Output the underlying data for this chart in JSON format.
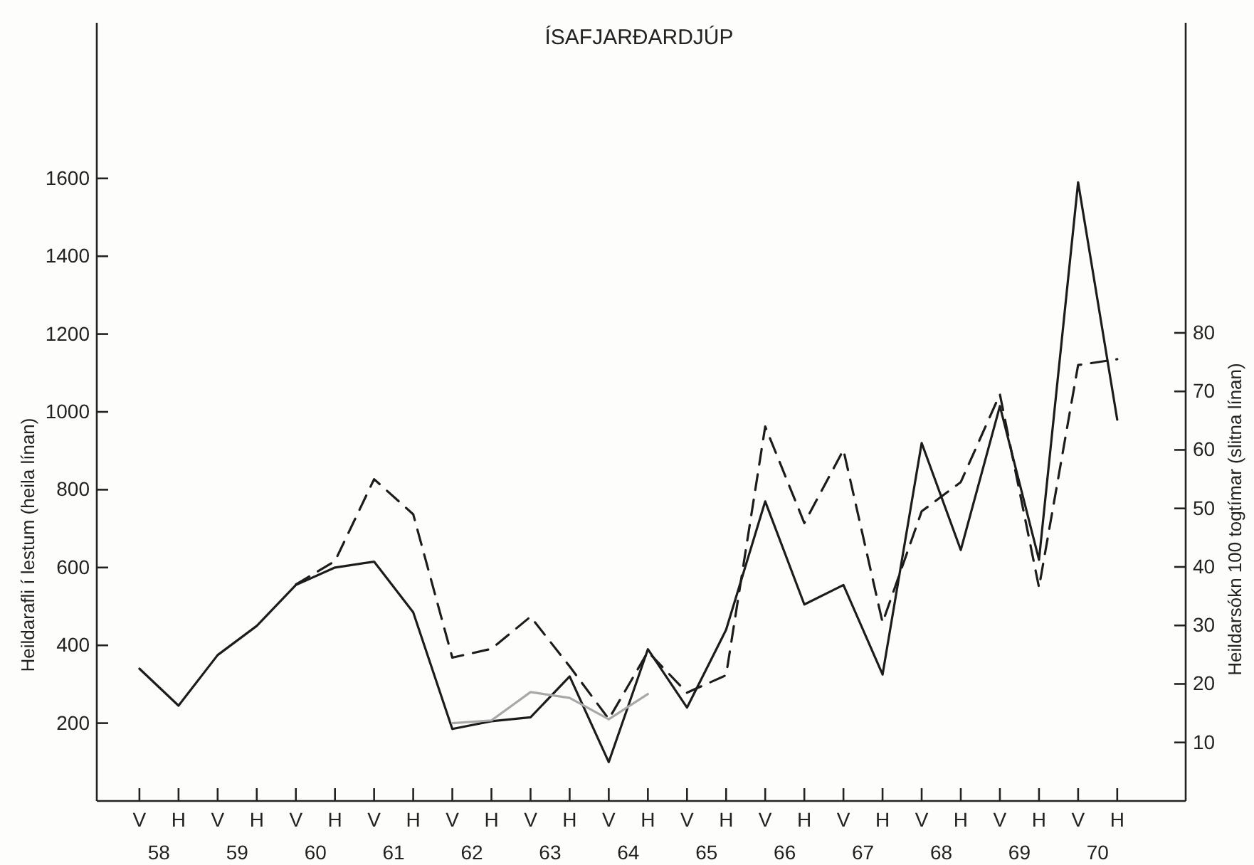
{
  "chart_data": {
    "type": "line",
    "title": "ÍSAFJARÐARDJÚP",
    "ylabel": "Heildarafli í lestum (heila línan)",
    "y2label": "Heildarsókn 100 togtímar (slitna línan)",
    "categories": [
      "V",
      "H",
      "V",
      "H",
      "V",
      "H",
      "V",
      "H",
      "V",
      "H",
      "V",
      "H",
      "V",
      "H",
      "V",
      "H",
      "V",
      "H",
      "V",
      "H",
      "V",
      "H",
      "V",
      "H",
      "V",
      "H"
    ],
    "annotations": [
      "58",
      "59",
      "60",
      "61",
      "62",
      "63",
      "64",
      "65",
      "66",
      "67",
      "68",
      "69",
      "70"
    ],
    "ylim": [
      0,
      2000
    ],
    "yticks": [
      200,
      400,
      600,
      800,
      1000,
      1200,
      1400,
      1600
    ],
    "y2lim": [
      0,
      133
    ],
    "y2ticks": [
      10,
      20,
      30,
      40,
      50,
      60,
      70,
      80
    ],
    "series": [
      {
        "color": "#1c1c1c",
        "line_style": "solid",
        "values": [
          340,
          245,
          375,
          450,
          555,
          600,
          615,
          485,
          185,
          205,
          215,
          320,
          100,
          390,
          240,
          440,
          770,
          505,
          555,
          325,
          920,
          645,
          1015,
          620,
          1590,
          980
        ]
      },
      {
        "color": "#1c1c1c",
        "line_style": "dashed",
        "axis": "y2",
        "values": [
          null,
          null,
          null,
          null,
          37,
          41,
          55,
          49,
          24.5,
          26,
          31.5,
          23,
          14,
          25.5,
          18.5,
          21.5,
          64,
          47.5,
          60,
          30.5,
          49.5,
          54.5,
          69.5,
          36.5,
          74.5,
          75.5
        ]
      },
      {
        "color": "#a8a8a8",
        "line_style": "solid",
        "values": [
          null,
          null,
          null,
          null,
          null,
          null,
          null,
          null,
          200,
          207,
          280,
          265,
          210,
          275,
          null,
          null,
          null,
          null,
          null,
          null,
          null,
          null,
          null,
          null,
          null,
          null
        ]
      }
    ]
  }
}
